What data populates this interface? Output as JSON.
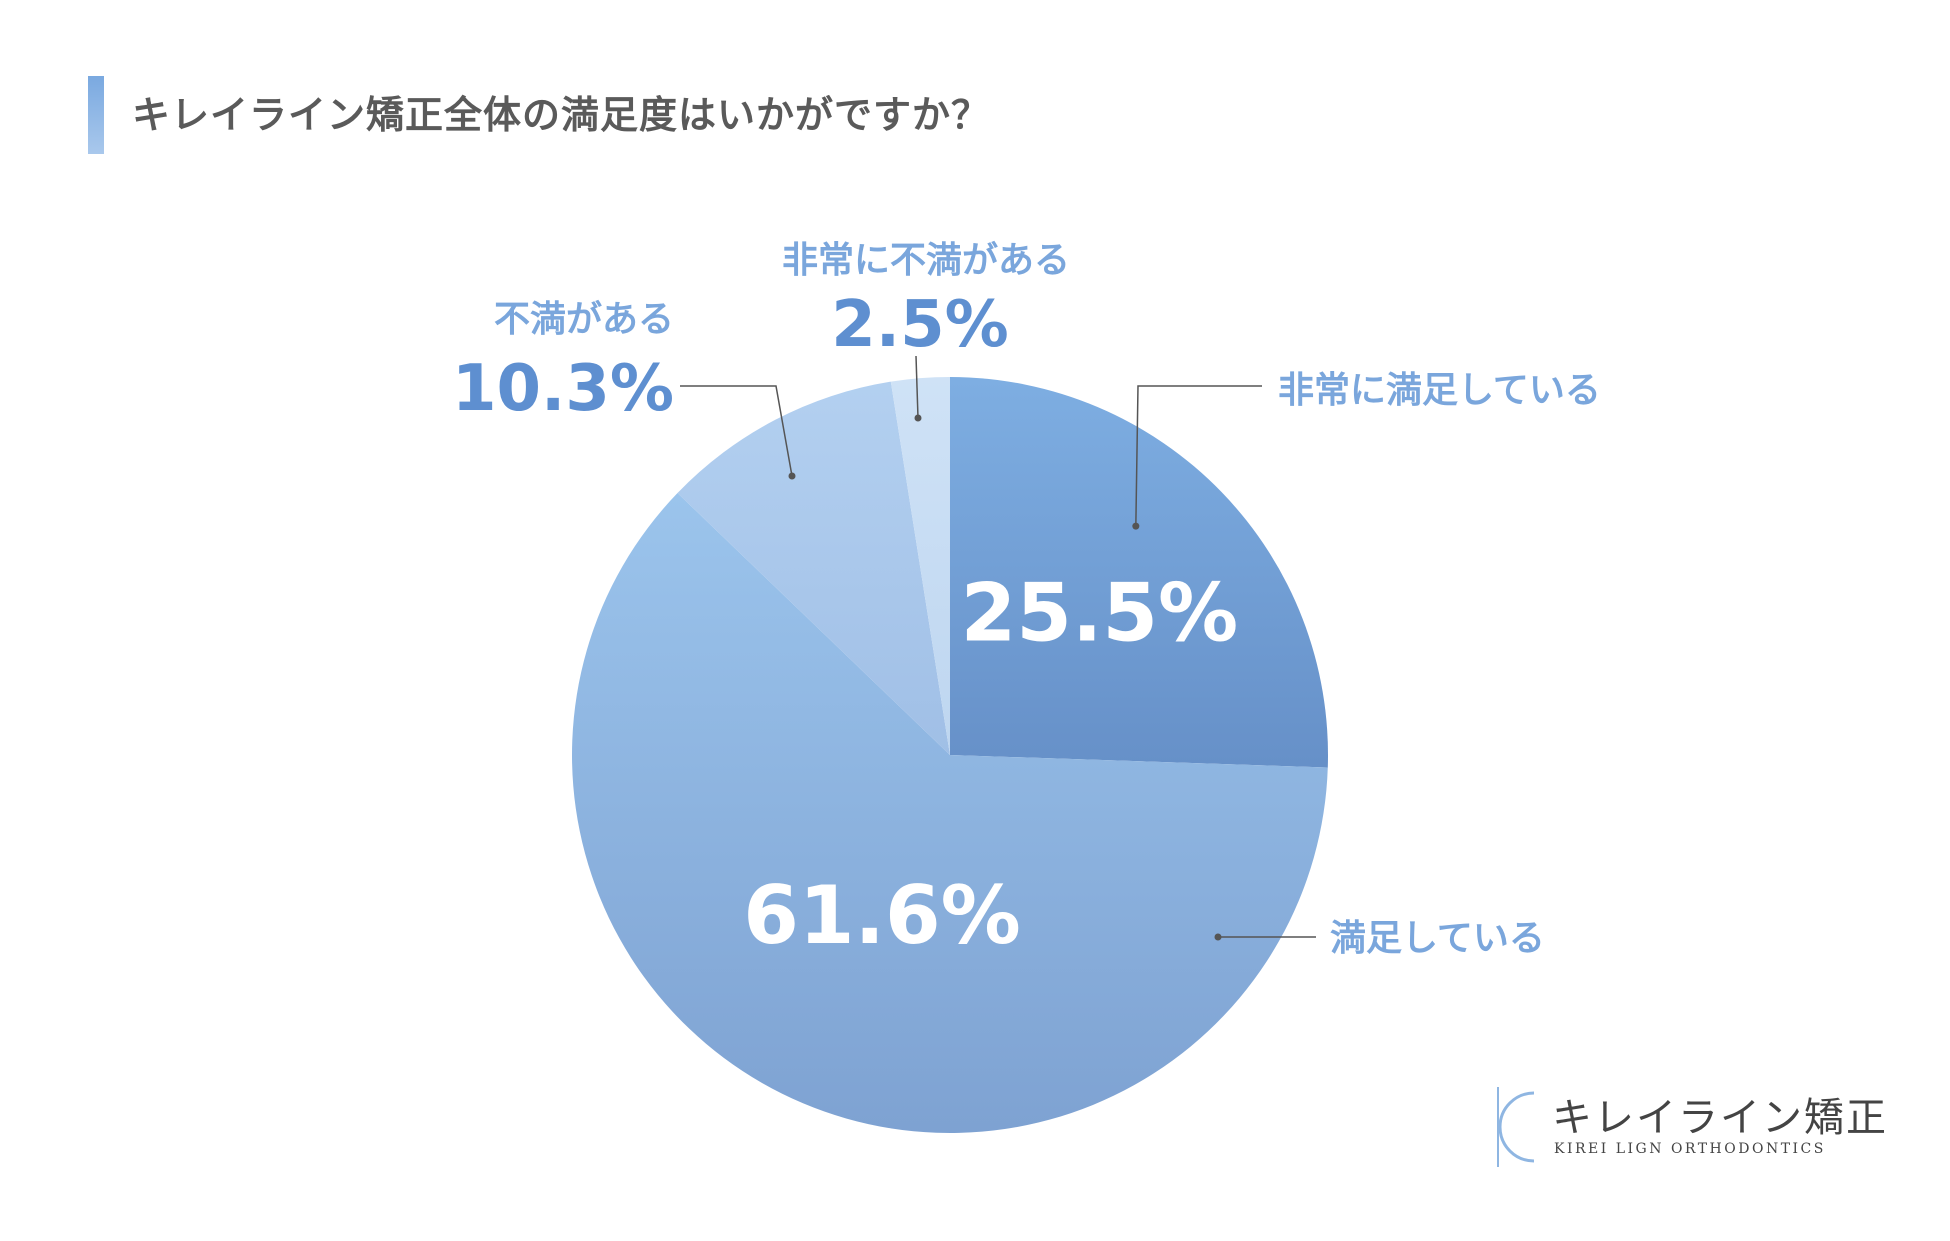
{
  "title": "キレイライン矯正全体の満足度はいかがですか？",
  "chart_data": {
    "type": "pie",
    "title": "キレイライン矯正全体の満足度はいかがですか？",
    "slices": [
      {
        "label": "非常に満足している",
        "value": 25.5,
        "display": "25.5%",
        "color": "#6b96cc"
      },
      {
        "label": "満足している",
        "value": 61.6,
        "display": "61.6%",
        "color": "#8db4e0"
      },
      {
        "label": "不満がある",
        "value": 10.3,
        "display": "10.3%",
        "color": "#a9c8ea"
      },
      {
        "label": "非常に不満がある",
        "value": 2.5,
        "display": "2.5%",
        "color": "#c6dcf3"
      }
    ]
  },
  "logo": {
    "name": "キレイライン矯正",
    "sub": "KIREI LIGN ORTHODONTICS"
  }
}
